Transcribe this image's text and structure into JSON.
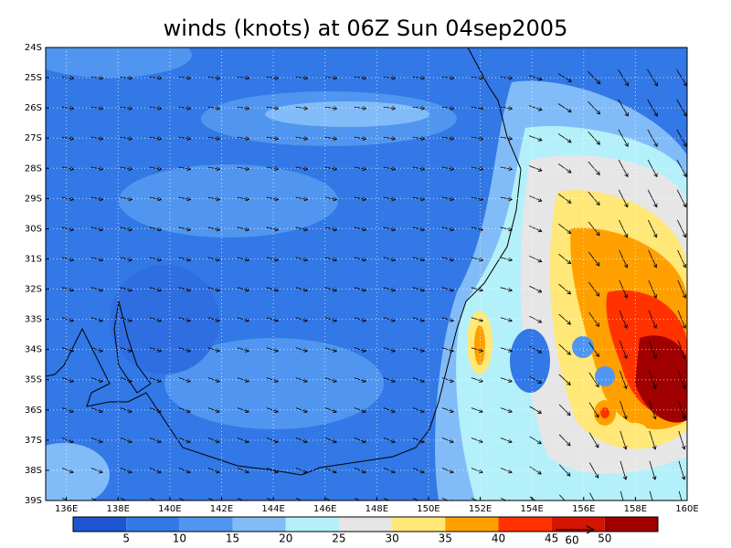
{
  "chart_data": {
    "type": "contour-map",
    "title": "winds (knots) at 06Z Sun 04sep2005",
    "xlim": [
      135.2,
      160
    ],
    "ylim": [
      -39,
      -24
    ],
    "xticks": [
      {
        "value": 136,
        "label": "136E"
      },
      {
        "value": 138,
        "label": "138E"
      },
      {
        "value": 140,
        "label": "140E"
      },
      {
        "value": 142,
        "label": "142E"
      },
      {
        "value": 144,
        "label": "144E"
      },
      {
        "value": 146,
        "label": "146E"
      },
      {
        "value": 148,
        "label": "148E"
      },
      {
        "value": 150,
        "label": "150E"
      },
      {
        "value": 152,
        "label": "152E"
      },
      {
        "value": 154,
        "label": "154E"
      },
      {
        "value": 156,
        "label": "156E"
      },
      {
        "value": 158,
        "label": "158E"
      },
      {
        "value": 160,
        "label": "160E"
      }
    ],
    "yticks": [
      {
        "value": -24,
        "label": "24S"
      },
      {
        "value": -25,
        "label": "25S"
      },
      {
        "value": -26,
        "label": "26S"
      },
      {
        "value": -27,
        "label": "27S"
      },
      {
        "value": -28,
        "label": "28S"
      },
      {
        "value": -29,
        "label": "29S"
      },
      {
        "value": -30,
        "label": "30S"
      },
      {
        "value": -31,
        "label": "31S"
      },
      {
        "value": -32,
        "label": "32S"
      },
      {
        "value": -33,
        "label": "33S"
      },
      {
        "value": -34,
        "label": "34S"
      },
      {
        "value": -35,
        "label": "35S"
      },
      {
        "value": -36,
        "label": "36S"
      },
      {
        "value": -37,
        "label": "37S"
      },
      {
        "value": -38,
        "label": "38S"
      },
      {
        "value": -39,
        "label": "39S"
      }
    ],
    "grid": true,
    "colorbar": {
      "levels": [
        5,
        10,
        15,
        20,
        25,
        30,
        35,
        40,
        45,
        50
      ],
      "colors": [
        "#1f55d0",
        "#3278e6",
        "#5096f0",
        "#82bcf8",
        "#b4f0fa",
        "#e6e6e6",
        "#ffe878",
        "#ffa000",
        "#ff3200",
        "#d21400",
        "#a00000"
      ]
    },
    "vector_reference": 60
  }
}
